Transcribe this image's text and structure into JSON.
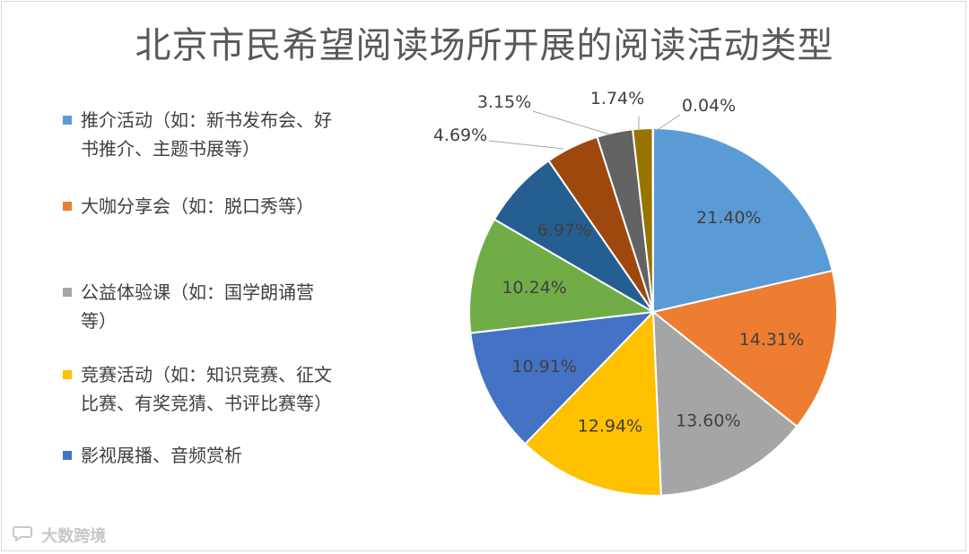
{
  "chart_data": {
    "type": "pie",
    "title": "北京市民希望阅读场所开展的阅读活动类型",
    "slices": [
      {
        "label": "推介活动（如：新书发布会、好书推介、主题书展等）",
        "value": 21.4,
        "value_label": "21.40%",
        "color": "#5B9BD5",
        "in_legend": true
      },
      {
        "label": "大咖分享会（如：脱口秀等）",
        "value": 14.31,
        "value_label": "14.31%",
        "color": "#ED7D31",
        "in_legend": true
      },
      {
        "label": "公益体验课（如：国学朗诵营等）",
        "value": 13.6,
        "value_label": "13.60%",
        "color": "#A5A5A5",
        "in_legend": true
      },
      {
        "label": "竞赛活动（如：知识竞赛、征文比赛、有奖竞猜、书评比赛等）",
        "value": 12.94,
        "value_label": "12.94%",
        "color": "#FFC000",
        "in_legend": true
      },
      {
        "label": "影视展播、音频赏析",
        "value": 10.91,
        "value_label": "10.91%",
        "color": "#4472C4",
        "in_legend": true
      },
      {
        "label": "",
        "value": 10.24,
        "value_label": "10.24%",
        "color": "#70AD47",
        "in_legend": false
      },
      {
        "label": "",
        "value": 6.97,
        "value_label": "6.97%",
        "color": "#255E91",
        "in_legend": false
      },
      {
        "label": "",
        "value": 4.69,
        "value_label": "4.69%",
        "color": "#9E480E",
        "in_legend": false
      },
      {
        "label": "",
        "value": 3.15,
        "value_label": "3.15%",
        "color": "#636363",
        "in_legend": false
      },
      {
        "label": "",
        "value": 1.74,
        "value_label": "1.74%",
        "color": "#997300",
        "in_legend": false
      },
      {
        "label": "",
        "value": 0.04,
        "value_label": "0.04%",
        "color": "#264478",
        "in_legend": false
      }
    ],
    "legend_position": "left",
    "start_angle": "12 o'clock",
    "direction": "clockwise"
  },
  "watermark": {
    "text": "大数跨境",
    "icon": "chat-bubble-icon"
  }
}
